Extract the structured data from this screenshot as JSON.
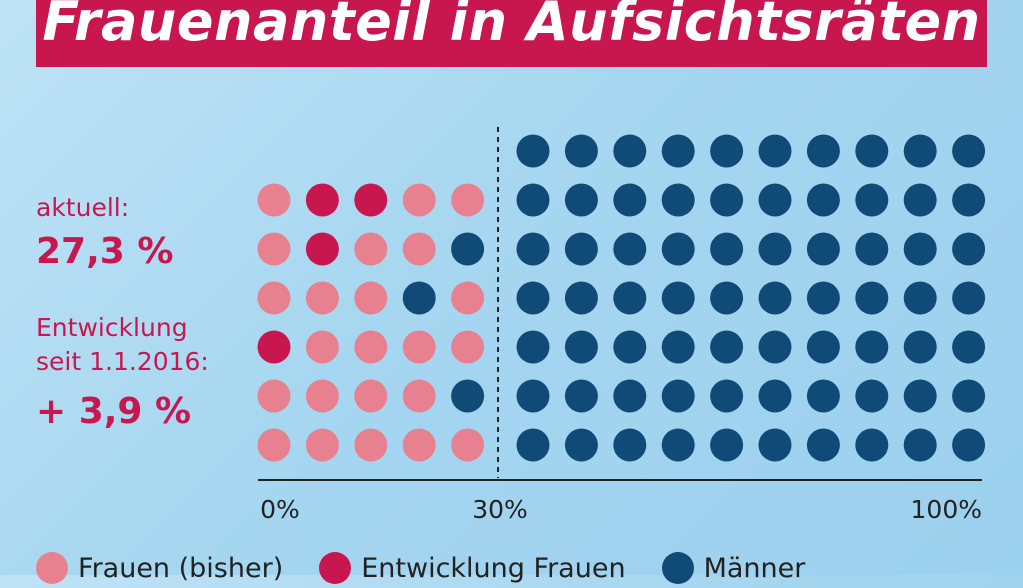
{
  "title": "Frauenanteil in Aufsichtsräten",
  "side_text": {
    "current_label": "aktuell:",
    "current_value": "27,3 %",
    "development_label_line1": "Entwicklung",
    "development_label_line2": "seit 1.1.2016:",
    "development_value": "+ 3,9 %"
  },
  "colors": {
    "banner": "#c8174f",
    "women_previous": "#e8818f",
    "women_development": "#c8174f",
    "men": "#104b78",
    "axis": "#222222",
    "accent_text": "#c8174f"
  },
  "chart_data": {
    "type": "dot-matrix",
    "title": "Frauenanteil in Aufsichtsräten",
    "x_ticks": [
      "0%",
      "30%",
      "100%"
    ],
    "legend": [
      {
        "key": "W",
        "label": "Frauen (bisher)"
      },
      {
        "key": "D",
        "label": "Entwicklung Frauen"
      },
      {
        "key": "M",
        "label": "Männer"
      }
    ],
    "rows_left": [
      "WDDWW",
      "WDWWM",
      "WWWMW",
      "DWWWW",
      "WWWWM",
      "WWWWW"
    ],
    "rows_right_count": 7,
    "cols_right_count": 10,
    "right_value": "M",
    "summary": {
      "current_share_percent": 27.3,
      "development_since_2016_percent": 3.9
    },
    "legend_position": "bottom"
  }
}
